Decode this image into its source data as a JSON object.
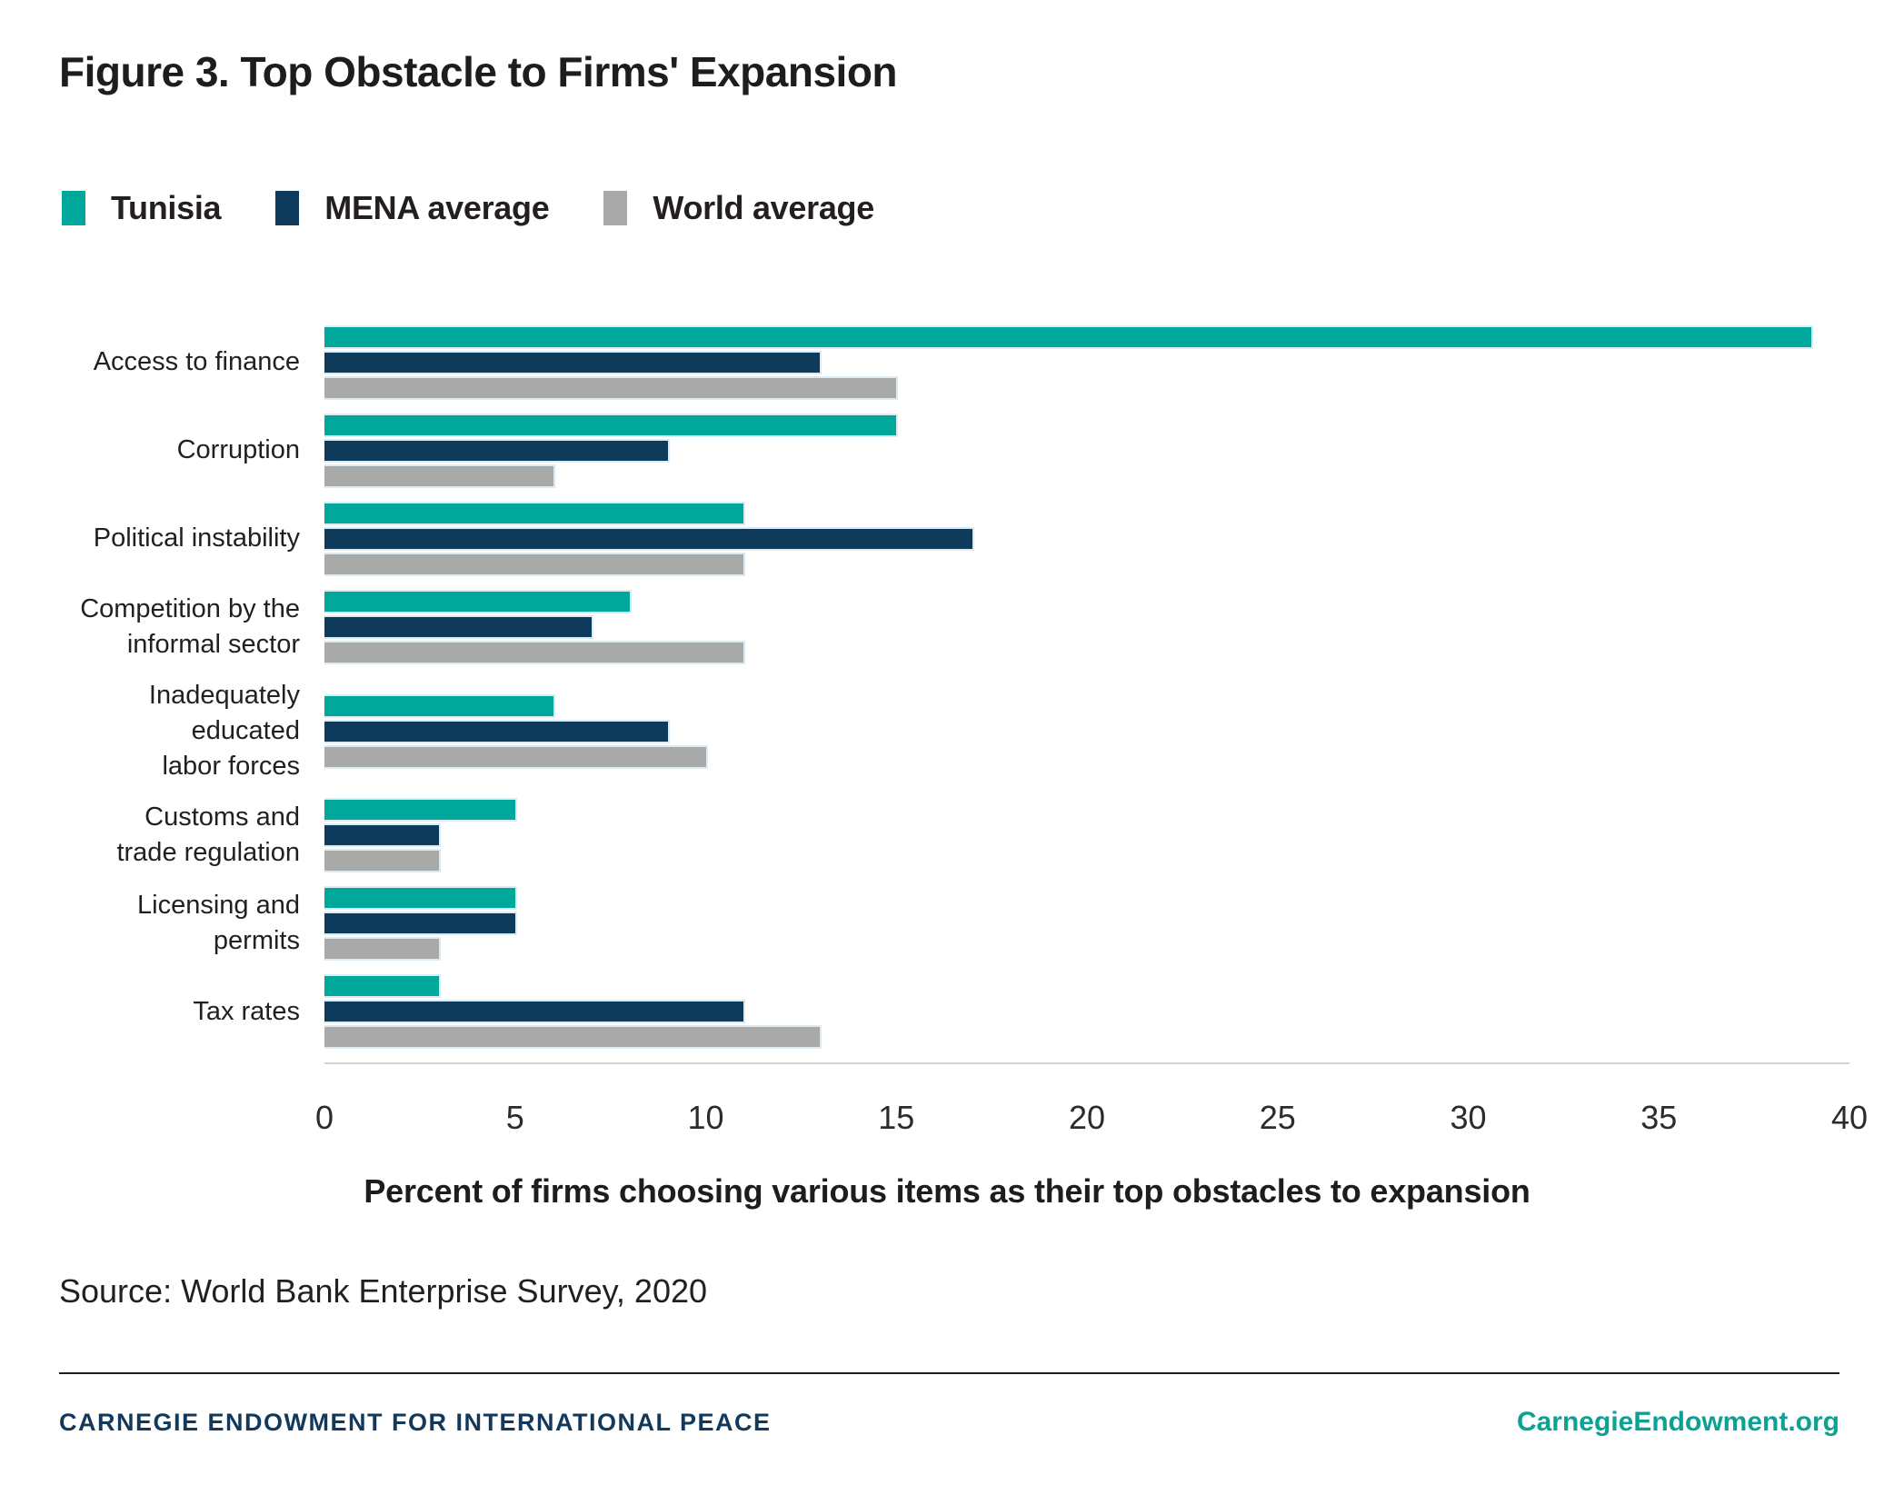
{
  "title": "Figure 3. Top Obstacle to Firms' Expansion",
  "legend": [
    {
      "label": "Tunisia",
      "color": "#00a79b"
    },
    {
      "label": "MENA average",
      "color": "#0e3a5c"
    },
    {
      "label": "World average",
      "color": "#a9a9a9"
    }
  ],
  "chart_data": {
    "type": "bar",
    "orientation": "horizontal",
    "categories": [
      "Access to finance",
      "Corruption",
      "Political instability",
      "Competition by the\ninformal sector",
      "Inadequately educated\nlabor forces",
      "Customs and\ntrade regulation",
      "Licensing and permits",
      "Tax rates"
    ],
    "series": [
      {
        "name": "Tunisia",
        "color": "#00a79b",
        "values": [
          39,
          15,
          11,
          8,
          6,
          5,
          5,
          3
        ]
      },
      {
        "name": "MENA average",
        "color": "#0e3a5c",
        "values": [
          13,
          9,
          17,
          7,
          9,
          3,
          5,
          11
        ]
      },
      {
        "name": "World average",
        "color": "#a9a9a9",
        "values": [
          15,
          6,
          11,
          11,
          10,
          3,
          3,
          13
        ]
      }
    ],
    "xlim": [
      0,
      40
    ],
    "xticks": [
      0,
      5,
      10,
      15,
      20,
      25,
      30,
      35,
      40
    ],
    "xlabel": "Percent of firms choosing various items as their top obstacles to expansion",
    "grid": false,
    "legend_position": "top-left"
  },
  "source": "Source: World Bank Enterprise Survey, 2020",
  "footer": {
    "left": "CARNEGIE ENDOWMENT FOR INTERNATIONAL PEACE",
    "right": "CarnegieEndowment.org"
  },
  "colors": {
    "accent_teal": "#00a79b",
    "accent_navy": "#0e3a5c",
    "accent_gray": "#a9a9a9",
    "bar_outline": "#dbeaf3",
    "footer_navy": "#12395b",
    "footer_teal": "#0ba194"
  }
}
